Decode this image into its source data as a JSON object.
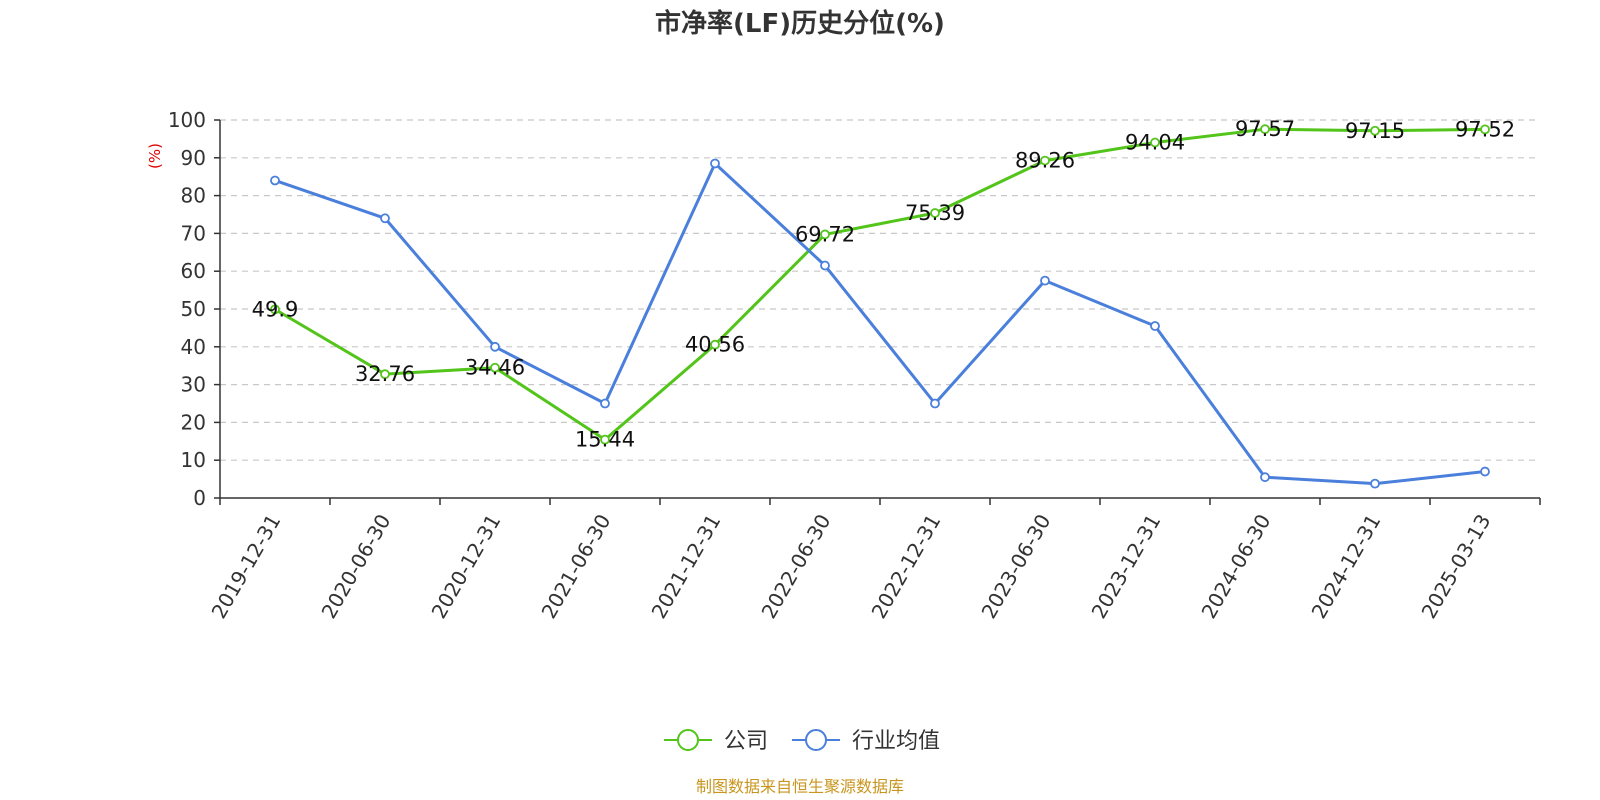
{
  "chart_data": {
    "type": "line",
    "title": "市净率(LF)历史分位(%)",
    "ylabel": "(%)",
    "xlabel": "",
    "ylim": [
      0,
      100
    ],
    "yticks": [
      0,
      10,
      20,
      30,
      40,
      50,
      60,
      70,
      80,
      90,
      100
    ],
    "grid": true,
    "legend_position": "bottom",
    "categories": [
      "2019-12-31",
      "2020-06-30",
      "2020-12-31",
      "2021-06-30",
      "2021-12-31",
      "2022-06-30",
      "2022-12-31",
      "2023-06-30",
      "2023-12-31",
      "2024-06-30",
      "2024-12-31",
      "2025-03-13"
    ],
    "series": [
      {
        "name": "公司",
        "color": "#52c41a",
        "values": [
          49.9,
          32.76,
          34.46,
          15.44,
          40.56,
          69.72,
          75.39,
          89.26,
          94.04,
          97.57,
          97.15,
          97.52
        ],
        "data_labels": [
          "49.9",
          "32.76",
          "34.46",
          "15.44",
          "40.56",
          "69.72",
          "75.39",
          "89.26",
          "94.04",
          "97.57",
          "97.15",
          "97.52"
        ]
      },
      {
        "name": "行业均值",
        "color": "#4a7fdc",
        "values": [
          84,
          74,
          40,
          25,
          88.5,
          61.5,
          25,
          57.5,
          45.5,
          5.5,
          3.8,
          7
        ]
      }
    ]
  },
  "source": {
    "text": "制图数据来自恒生聚源数据库",
    "color": "#c8961e"
  },
  "colors": {
    "grid": "#c8c8c8",
    "axis": "#333333"
  }
}
